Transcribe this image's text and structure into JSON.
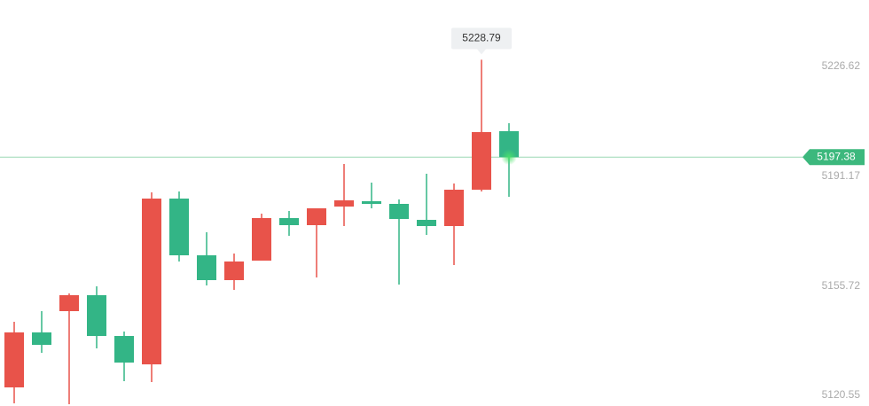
{
  "chart_data": {
    "type": "candlestick",
    "open": [
      5123.13,
      5140.86,
      5147.72,
      5152.86,
      5139.71,
      5130.56,
      5184.02,
      5165.73,
      5157.72,
      5164.01,
      5177.73,
      5175.45,
      5181.45,
      5183.17,
      5182.31,
      5177.16,
      5175.16,
      5186.88,
      5205.75
    ],
    "high": [
      5144.29,
      5147.72,
      5153.43,
      5155.72,
      5141.14,
      5186.03,
      5186.31,
      5173.16,
      5166.3,
      5179.16,
      5180.02,
      5180.88,
      5195.17,
      5189.17,
      5183.74,
      5192.03,
      5188.88,
      5228.79,
      5208.32
    ],
    "low": [
      5117.99,
      5134.28,
      5117.7,
      5135.71,
      5125.13,
      5124.85,
      5163.73,
      5156.01,
      5154.58,
      5164.01,
      5172.02,
      5158.58,
      5175.16,
      5180.88,
      5156.29,
      5172.3,
      5162.58,
      5186.31,
      5184.6
    ],
    "close": [
      5140.86,
      5136.85,
      5152.86,
      5139.71,
      5131.14,
      5184.02,
      5165.73,
      5157.72,
      5163.73,
      5177.73,
      5175.45,
      5180.88,
      5183.45,
      5182.31,
      5177.45,
      5175.16,
      5186.88,
      5205.46,
      5197.38
    ],
    "up_color": "#e8534a",
    "down_color": "#33b586",
    "ylim": [
      5117.13,
      5248.06
    ],
    "yticks": [
      5120.55,
      5155.72,
      5191.17,
      5226.62
    ]
  }
}
